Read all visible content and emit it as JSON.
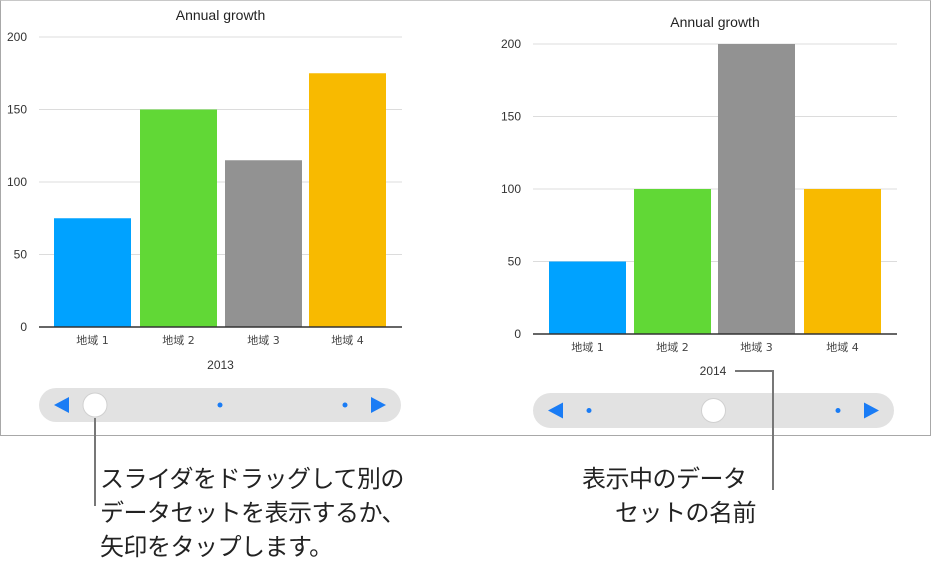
{
  "chart_data": [
    {
      "type": "bar",
      "title": "Annual growth",
      "dataset_label": "2013",
      "categories": [
        "地域 1",
        "地域 2",
        "地域 3",
        "地域 4"
      ],
      "values": [
        75,
        150,
        115,
        175
      ],
      "ylim": [
        0,
        200
      ],
      "yticks": [
        0,
        50,
        100,
        150,
        200
      ],
      "grid": true,
      "colors": [
        "#00a2ff",
        "#61d836",
        "#929292",
        "#f8ba00"
      ],
      "slider": {
        "position": 0,
        "datasets": 3
      }
    },
    {
      "type": "bar",
      "title": "Annual growth",
      "dataset_label": "2014",
      "categories": [
        "地域 1",
        "地域 2",
        "地域 3",
        "地域 4"
      ],
      "values": [
        50,
        100,
        200,
        100
      ],
      "ylim": [
        0,
        200
      ],
      "yticks": [
        0,
        50,
        100,
        150,
        200
      ],
      "grid": true,
      "colors": [
        "#00a2ff",
        "#61d836",
        "#929292",
        "#f8ba00"
      ],
      "slider": {
        "position": 1,
        "datasets": 3
      }
    }
  ],
  "slider_accent": "#1a7cf5",
  "callouts": {
    "slider_lines": [
      "スライダをドラッグして別の",
      "データセットを表示するか、",
      "矢印をタップします。"
    ],
    "name_lines": [
      "表示中のデータ",
      "セットの名前"
    ]
  }
}
